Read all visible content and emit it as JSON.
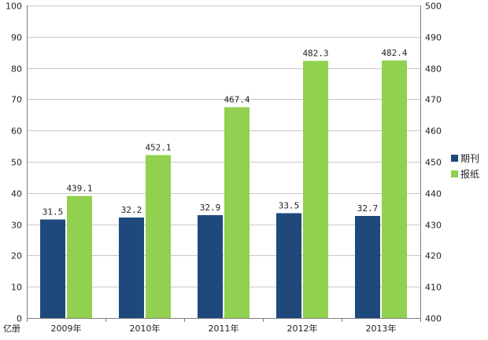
{
  "chart_data": {
    "type": "bar",
    "categories": [
      "2009年",
      "2010年",
      "2011年",
      "2012年",
      "2013年"
    ],
    "series": [
      {
        "name": "期刊",
        "axis": "left",
        "color": "#1f497d",
        "values": [
          31.5,
          32.2,
          32.9,
          33.5,
          32.7
        ]
      },
      {
        "name": "报纸",
        "axis": "right",
        "color": "#92d050",
        "values": [
          439.1,
          452.1,
          467.4,
          482.3,
          482.4
        ]
      }
    ],
    "y_left": {
      "unit_label": "亿册",
      "ylim": [
        0,
        100
      ],
      "ticks": [
        "0",
        "10",
        "20",
        "30",
        "40",
        "50",
        "60",
        "70",
        "80",
        "90",
        "100"
      ]
    },
    "y_right": {
      "ylim": [
        400,
        500
      ],
      "ticks": [
        "400",
        "410",
        "420",
        "430",
        "440",
        "450",
        "460",
        "470",
        "480",
        "490",
        "500"
      ]
    },
    "grid": true,
    "legend": "right",
    "data_labels": [
      [
        "31.5",
        "32.2",
        "32.9",
        "33.5",
        "32.7"
      ],
      [
        "439.1",
        "452.1",
        "467.4",
        "482.3",
        "482.4"
      ]
    ]
  }
}
